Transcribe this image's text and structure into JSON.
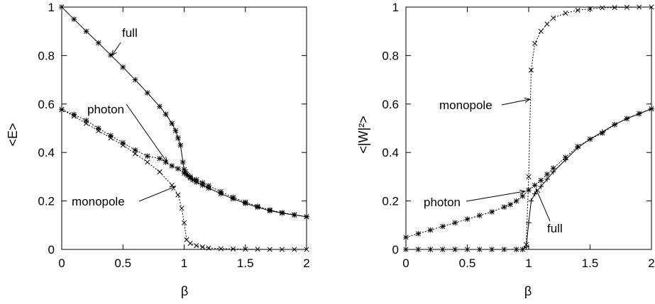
{
  "chart_data": [
    {
      "type": "line",
      "xlabel": "β",
      "ylabel": "<E>",
      "xlim": [
        0,
        2
      ],
      "ylim": [
        0,
        1
      ],
      "xticks": [
        "0",
        "0.5",
        "1",
        "1.5",
        "2"
      ],
      "yticks": [
        "0",
        "0.2",
        "0.4",
        "0.6",
        "0.8",
        "1"
      ],
      "grid": false,
      "series": [
        {
          "name": "full",
          "style": "solid",
          "marker": "*",
          "x": [
            0,
            0.1,
            0.2,
            0.3,
            0.4,
            0.5,
            0.6,
            0.7,
            0.8,
            0.85,
            0.9,
            0.93,
            0.95,
            0.97,
            0.99,
            1.0,
            1.01,
            1.02,
            1.03,
            1.05,
            1.07,
            1.1,
            1.15,
            1.2,
            1.3,
            1.4,
            1.5,
            1.6,
            1.7,
            1.8,
            1.9,
            2.0
          ],
          "y": [
            1.0,
            0.95,
            0.9,
            0.852,
            0.802,
            0.752,
            0.7,
            0.646,
            0.59,
            0.558,
            0.52,
            0.49,
            0.46,
            0.43,
            0.36,
            0.33,
            0.32,
            0.31,
            0.305,
            0.295,
            0.287,
            0.278,
            0.265,
            0.253,
            0.23,
            0.209,
            0.19,
            0.174,
            0.16,
            0.15,
            0.142,
            0.135
          ]
        },
        {
          "name": "photon",
          "style": "dotted",
          "marker": "*",
          "x": [
            0,
            0.1,
            0.2,
            0.3,
            0.4,
            0.5,
            0.6,
            0.7,
            0.8,
            0.85,
            0.9,
            0.95,
            1.0,
            1.05,
            1.1,
            1.15,
            1.2,
            1.3,
            1.4,
            1.5,
            1.6,
            1.7,
            1.8,
            1.9,
            2.0
          ],
          "y": [
            0.577,
            0.557,
            0.532,
            0.5,
            0.47,
            0.44,
            0.41,
            0.385,
            0.375,
            0.36,
            0.345,
            0.333,
            0.315,
            0.3,
            0.288,
            0.275,
            0.263,
            0.238,
            0.215,
            0.195,
            0.178,
            0.163,
            0.152,
            0.143,
            0.135
          ]
        },
        {
          "name": "monopole",
          "style": "dotted",
          "marker": "x",
          "x": [
            0,
            0.1,
            0.2,
            0.3,
            0.4,
            0.5,
            0.6,
            0.7,
            0.8,
            0.9,
            0.95,
            0.98,
            1.0,
            1.02,
            1.05,
            1.1,
            1.15,
            1.2,
            1.3,
            1.4,
            1.5,
            1.6,
            1.7,
            1.8,
            1.9,
            2.0
          ],
          "y": [
            0.577,
            0.55,
            0.52,
            0.49,
            0.46,
            0.43,
            0.395,
            0.36,
            0.32,
            0.265,
            0.225,
            0.17,
            0.11,
            0.04,
            0.025,
            0.016,
            0.01,
            0.006,
            0.003,
            0.002,
            0.001,
            0.001,
            0.0,
            0.0,
            0.0,
            0.0
          ]
        }
      ],
      "annotations": [
        {
          "text": "full",
          "arrow_to": [
            0.41,
            0.8
          ]
        },
        {
          "text": "photon",
          "arrow_to": [
            0.86,
            0.36
          ]
        },
        {
          "text": "monopole",
          "arrow_to": [
            0.93,
            0.26
          ]
        }
      ]
    },
    {
      "type": "line",
      "xlabel": "β",
      "ylabel": "<|W|²>",
      "xlim": [
        0,
        2
      ],
      "ylim": [
        0,
        1
      ],
      "xticks": [
        "0",
        "0.5",
        "1",
        "1.5",
        "2"
      ],
      "yticks": [
        "0",
        "0.2",
        "0.4",
        "0.6",
        "0.8",
        "1"
      ],
      "grid": false,
      "series": [
        {
          "name": "monopole",
          "style": "dotted",
          "marker": "x",
          "x": [
            0,
            0.1,
            0.2,
            0.3,
            0.4,
            0.5,
            0.6,
            0.7,
            0.8,
            0.9,
            0.95,
            0.98,
            1.0,
            1.02,
            1.05,
            1.1,
            1.15,
            1.2,
            1.3,
            1.4,
            1.5,
            1.6,
            1.7,
            1.8,
            1.9,
            2.0
          ],
          "y": [
            0,
            0,
            0,
            0,
            0,
            0,
            0,
            0,
            0,
            0,
            0,
            0.02,
            0.3,
            0.74,
            0.85,
            0.9,
            0.93,
            0.955,
            0.975,
            0.987,
            0.993,
            0.997,
            0.998,
            0.999,
            1.0,
            1.0
          ]
        },
        {
          "name": "photon",
          "style": "dotted",
          "marker": "*",
          "x": [
            0,
            0.1,
            0.2,
            0.3,
            0.4,
            0.5,
            0.6,
            0.7,
            0.8,
            0.85,
            0.9,
            0.95,
            1.0,
            1.05,
            1.1,
            1.15,
            1.2,
            1.3,
            1.4,
            1.5,
            1.6,
            1.7,
            1.8,
            1.9,
            2.0
          ],
          "y": [
            0.05,
            0.065,
            0.08,
            0.095,
            0.11,
            0.125,
            0.14,
            0.155,
            0.175,
            0.185,
            0.2,
            0.22,
            0.245,
            0.265,
            0.285,
            0.31,
            0.335,
            0.38,
            0.425,
            0.455,
            0.48,
            0.515,
            0.54,
            0.56,
            0.58
          ]
        },
        {
          "name": "full",
          "style": "solid",
          "marker": "+",
          "x": [
            0,
            0.1,
            0.2,
            0.3,
            0.4,
            0.5,
            0.6,
            0.7,
            0.8,
            0.9,
            0.95,
            0.98,
            1.0,
            1.02,
            1.05,
            1.1,
            1.15,
            1.2,
            1.3,
            1.4,
            1.5,
            1.6,
            1.7,
            1.8,
            1.9,
            2.0
          ],
          "y": [
            0,
            0,
            0,
            0,
            0,
            0,
            0,
            0,
            0,
            0,
            0,
            0.01,
            0.11,
            0.2,
            0.23,
            0.26,
            0.29,
            0.32,
            0.37,
            0.42,
            0.455,
            0.485,
            0.515,
            0.54,
            0.56,
            0.58
          ]
        }
      ],
      "annotations": [
        {
          "text": "monopole",
          "arrow_to": [
            1.01,
            0.62
          ]
        },
        {
          "text": "photon",
          "arrow_to": [
            0.97,
            0.24
          ]
        },
        {
          "text": "full",
          "arrow_to": [
            1.06,
            0.25
          ]
        }
      ]
    }
  ]
}
